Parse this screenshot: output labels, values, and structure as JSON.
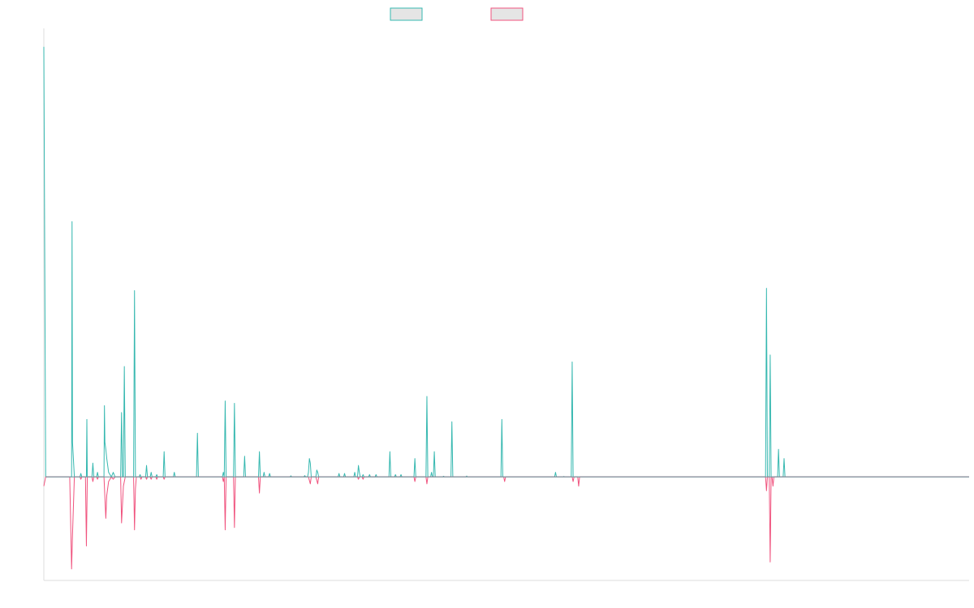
{
  "chart_data": {
    "type": "line",
    "title": "",
    "xlabel": "",
    "ylabel": "",
    "xlim": [
      0,
      1000
    ],
    "ylim": [
      -45,
      195
    ],
    "grid": false,
    "legend_placement": "top-center",
    "series": [
      {
        "key": "positive",
        "color": "#36b8b0",
        "fill": "#e5e5e5",
        "points": [
          [
            0,
            187
          ],
          [
            2,
            0
          ],
          [
            30,
            0
          ],
          [
            30.5,
            111
          ],
          [
            31,
            15
          ],
          [
            33,
            0
          ],
          [
            39,
            0
          ],
          [
            40,
            1.5
          ],
          [
            41,
            0
          ],
          [
            46,
            0
          ],
          [
            46.5,
            25
          ],
          [
            47,
            0
          ],
          [
            52,
            0
          ],
          [
            53,
            6
          ],
          [
            54,
            0
          ],
          [
            57,
            0
          ],
          [
            58,
            2
          ],
          [
            59,
            0
          ],
          [
            65,
            0
          ],
          [
            65.5,
            31
          ],
          [
            66,
            15
          ],
          [
            67,
            12
          ],
          [
            68,
            8
          ],
          [
            70,
            2
          ],
          [
            73,
            0
          ],
          [
            75,
            2
          ],
          [
            77,
            0
          ],
          [
            83,
            0
          ],
          [
            84,
            28
          ],
          [
            85,
            0
          ],
          [
            86,
            0
          ],
          [
            87,
            48
          ],
          [
            88,
            0
          ],
          [
            97,
            0
          ],
          [
            98,
            81
          ],
          [
            99,
            0
          ],
          [
            100,
            0
          ],
          [
            103,
            0
          ],
          [
            104,
            1
          ],
          [
            105,
            0
          ],
          [
            110,
            0
          ],
          [
            111,
            5
          ],
          [
            112,
            0
          ],
          [
            115,
            0
          ],
          [
            116,
            2
          ],
          [
            117,
            0
          ],
          [
            121,
            0
          ],
          [
            122,
            1
          ],
          [
            123,
            0
          ],
          [
            129,
            0
          ],
          [
            130,
            11
          ],
          [
            131,
            0
          ],
          [
            140,
            0
          ],
          [
            141,
            2
          ],
          [
            142,
            0
          ],
          [
            165,
            0
          ],
          [
            166,
            19
          ],
          [
            167,
            0
          ],
          [
            193,
            0
          ],
          [
            194,
            2
          ],
          [
            195,
            0
          ],
          [
            196,
            33
          ],
          [
            197,
            0
          ],
          [
            205,
            0
          ],
          [
            206,
            32
          ],
          [
            207,
            0
          ],
          [
            216,
            0
          ],
          [
            217,
            9
          ],
          [
            218,
            0
          ],
          [
            232,
            0
          ],
          [
            233,
            11
          ],
          [
            234,
            0
          ],
          [
            237,
            0
          ],
          [
            238,
            2
          ],
          [
            239,
            0
          ],
          [
            243,
            0
          ],
          [
            244,
            1.5
          ],
          [
            245,
            0
          ],
          [
            266,
            0
          ],
          [
            267,
            0.5
          ],
          [
            268,
            0
          ],
          [
            281,
            0
          ],
          [
            282,
            0.6
          ],
          [
            283,
            0
          ],
          [
            285,
            0
          ],
          [
            286,
            2
          ],
          [
            287,
            8
          ],
          [
            288,
            6
          ],
          [
            289,
            0
          ],
          [
            294,
            0
          ],
          [
            295,
            3
          ],
          [
            296,
            2
          ],
          [
            297,
            0
          ],
          [
            318,
            0
          ],
          [
            319,
            1.5
          ],
          [
            320,
            0
          ],
          [
            324,
            0
          ],
          [
            325,
            1.5
          ],
          [
            326,
            0
          ],
          [
            335,
            0
          ],
          [
            336,
            2
          ],
          [
            337,
            0
          ],
          [
            339,
            0
          ],
          [
            340,
            5
          ],
          [
            341,
            2
          ],
          [
            342,
            0
          ],
          [
            344,
            0
          ],
          [
            345,
            1
          ],
          [
            346,
            0
          ],
          [
            351,
            0
          ],
          [
            352,
            1
          ],
          [
            353,
            0
          ],
          [
            358,
            0
          ],
          [
            359,
            1
          ],
          [
            360,
            0
          ],
          [
            373,
            0
          ],
          [
            374,
            11
          ],
          [
            375,
            0
          ],
          [
            379,
            0
          ],
          [
            380,
            1
          ],
          [
            381,
            0
          ],
          [
            385,
            0
          ],
          [
            386,
            1
          ],
          [
            387,
            0
          ],
          [
            400,
            0
          ],
          [
            401,
            8
          ],
          [
            402,
            0
          ],
          [
            413,
            0
          ],
          [
            414,
            35
          ],
          [
            415,
            0
          ],
          [
            418,
            0
          ],
          [
            419,
            2
          ],
          [
            420,
            0
          ],
          [
            421,
            0
          ],
          [
            422,
            11
          ],
          [
            423,
            0
          ],
          [
            431,
            0
          ],
          [
            432,
            0.3
          ],
          [
            433,
            0
          ],
          [
            440,
            0
          ],
          [
            441,
            24
          ],
          [
            442,
            0
          ],
          [
            456,
            0
          ],
          [
            457,
            0.4
          ],
          [
            458,
            0
          ],
          [
            494,
            0
          ],
          [
            495,
            25
          ],
          [
            496,
            0
          ],
          [
            552,
            0
          ],
          [
            553,
            2
          ],
          [
            554,
            0
          ],
          [
            561,
            0
          ],
          [
            562,
            0.2
          ],
          [
            563,
            0
          ],
          [
            570,
            0
          ],
          [
            571,
            50
          ],
          [
            572,
            0
          ],
          [
            780,
            0
          ],
          [
            781,
            82
          ],
          [
            782,
            0
          ],
          [
            784,
            0
          ],
          [
            785,
            53
          ],
          [
            786,
            0
          ],
          [
            793,
            0
          ],
          [
            794,
            12
          ],
          [
            795,
            0
          ],
          [
            799,
            0
          ],
          [
            800,
            8
          ],
          [
            801,
            0
          ],
          [
            1000,
            0
          ]
        ]
      },
      {
        "key": "negative",
        "color": "#f0537e",
        "fill": "#e5e5e5",
        "points": [
          [
            0,
            -4
          ],
          [
            2,
            0
          ],
          [
            28,
            0
          ],
          [
            30,
            -40
          ],
          [
            31,
            -25
          ],
          [
            33,
            0
          ],
          [
            39,
            0
          ],
          [
            40,
            -1
          ],
          [
            41,
            0
          ],
          [
            45,
            0
          ],
          [
            46,
            -30
          ],
          [
            47,
            0
          ],
          [
            52,
            0
          ],
          [
            53,
            -2
          ],
          [
            54,
            0
          ],
          [
            57,
            0
          ],
          [
            58,
            -1
          ],
          [
            59,
            0
          ],
          [
            65,
            0
          ],
          [
            67,
            -18
          ],
          [
            68,
            -8
          ],
          [
            70,
            -2
          ],
          [
            73,
            0
          ],
          [
            75,
            -1
          ],
          [
            77,
            0
          ],
          [
            83,
            0
          ],
          [
            84,
            -20
          ],
          [
            85,
            -12
          ],
          [
            86,
            -4
          ],
          [
            88,
            0
          ],
          [
            97,
            0
          ],
          [
            98,
            -23
          ],
          [
            99,
            -5
          ],
          [
            100,
            0
          ],
          [
            104,
            0
          ],
          [
            105,
            -1
          ],
          [
            106,
            0
          ],
          [
            110,
            0
          ],
          [
            111,
            -1
          ],
          [
            112,
            0
          ],
          [
            115,
            0
          ],
          [
            116,
            -1
          ],
          [
            117,
            0
          ],
          [
            121,
            0
          ],
          [
            122,
            -1
          ],
          [
            123,
            0
          ],
          [
            129,
            0
          ],
          [
            130,
            -1
          ],
          [
            131,
            0
          ],
          [
            193,
            0
          ],
          [
            194,
            -2
          ],
          [
            195,
            0
          ],
          [
            196,
            -23
          ],
          [
            197,
            0
          ],
          [
            205,
            0
          ],
          [
            206,
            -22
          ],
          [
            207,
            0
          ],
          [
            232,
            0
          ],
          [
            233,
            -7
          ],
          [
            234,
            0
          ],
          [
            286,
            0
          ],
          [
            288,
            -3
          ],
          [
            289,
            0
          ],
          [
            294,
            0
          ],
          [
            296,
            -3
          ],
          [
            297,
            0
          ],
          [
            339,
            0
          ],
          [
            340,
            -1
          ],
          [
            341,
            0
          ],
          [
            344,
            0
          ],
          [
            345,
            -1
          ],
          [
            346,
            0
          ],
          [
            400,
            0
          ],
          [
            401,
            -2
          ],
          [
            402,
            0
          ],
          [
            413,
            0
          ],
          [
            414,
            -3
          ],
          [
            415,
            0
          ],
          [
            497,
            0
          ],
          [
            498,
            -2
          ],
          [
            499,
            0
          ],
          [
            571,
            0
          ],
          [
            572,
            -2
          ],
          [
            573,
            0
          ],
          [
            577,
            0
          ],
          [
            578,
            -4
          ],
          [
            579,
            0
          ],
          [
            780,
            0
          ],
          [
            781,
            -6
          ],
          [
            782,
            0
          ],
          [
            784,
            0
          ],
          [
            785,
            -37
          ],
          [
            786,
            0
          ],
          [
            787,
            0
          ],
          [
            788,
            -4
          ],
          [
            789,
            0
          ],
          [
            1000,
            0
          ]
        ]
      }
    ]
  }
}
